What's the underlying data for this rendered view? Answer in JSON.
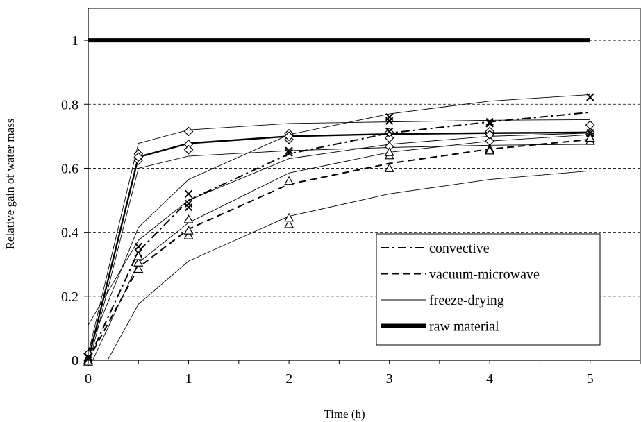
{
  "chart_data": {
    "type": "line",
    "title": "",
    "xlabel": "Time (h)",
    "ylabel": "Relative gain of water mass",
    "xlim": [
      0,
      5.5
    ],
    "ylim": [
      0,
      1.1
    ],
    "x_ticks": [
      "0",
      "1",
      "2",
      "3",
      "4",
      "5"
    ],
    "y_ticks": [
      "0",
      "0.2",
      "0.4",
      "0.6",
      "0.8",
      "1"
    ],
    "grid": "horizontal dashed",
    "legend_position": "bottom-right",
    "legend": [
      {
        "label": "convective",
        "style": "dash-dot"
      },
      {
        "label": "vacuum-microwave",
        "style": "dashed"
      },
      {
        "label": "freeze-drying",
        "style": "thin-solid"
      },
      {
        "label": "raw material",
        "style": "thick-solid"
      }
    ],
    "series": [
      {
        "name": "raw material",
        "style": "thick",
        "x": [
          0,
          5
        ],
        "y": [
          1,
          1
        ]
      },
      {
        "name": "freeze-drying",
        "style": "solid-mid",
        "marker": "diamond",
        "x": [
          0,
          0.5,
          1,
          2,
          3,
          4,
          5
        ],
        "y": [
          0,
          0.635,
          0.678,
          0.7,
          0.707,
          0.71,
          0.712
        ]
      },
      {
        "name": "freeze-drying",
        "style": "thin",
        "x": [
          0,
          0.5,
          1,
          2,
          3,
          4,
          5
        ],
        "y": [
          0.02,
          0.678,
          0.72,
          0.74,
          0.745,
          0.75,
          0.752
        ]
      },
      {
        "name": "freeze-drying",
        "style": "thin",
        "x": [
          0,
          0.5,
          1,
          2,
          3,
          4,
          5
        ],
        "y": [
          -0.02,
          0.6,
          0.638,
          0.655,
          0.665,
          0.672,
          0.675
        ]
      },
      {
        "name": "convective",
        "style": "dash-dot",
        "marker": "x",
        "x": [
          0,
          0.5,
          1,
          2,
          3,
          4,
          5
        ],
        "y": [
          0,
          0.34,
          0.5,
          0.645,
          0.71,
          0.745,
          0.775
        ]
      },
      {
        "name": "convective",
        "style": "thin",
        "x": [
          0,
          0.5,
          1,
          2,
          3,
          4,
          5
        ],
        "y": [
          0.03,
          0.415,
          0.565,
          0.705,
          0.77,
          0.81,
          0.83
        ]
      },
      {
        "name": "convective",
        "style": "thin",
        "x": [
          0,
          0.5,
          1,
          2,
          3,
          4,
          5
        ],
        "y": [
          -0.03,
          0.305,
          0.43,
          0.585,
          0.65,
          0.685,
          0.705
        ]
      },
      {
        "name": "vacuum-microwave",
        "style": "dashed",
        "marker": "triangle",
        "x": [
          0,
          0.5,
          1,
          2,
          3,
          4,
          5
        ],
        "y": [
          0,
          0.29,
          0.41,
          0.55,
          0.615,
          0.66,
          0.69
        ]
      },
      {
        "name": "vacuum-microwave",
        "style": "thin",
        "x": [
          0,
          0.5,
          1,
          2,
          3,
          4,
          5
        ],
        "y": [
          0.11,
          0.375,
          0.5,
          0.63,
          0.675,
          0.7,
          0.71
        ]
      },
      {
        "name": "vacuum-microwave",
        "style": "thin",
        "x": [
          0,
          0.5,
          1,
          2,
          3,
          4,
          5
        ],
        "y": [
          -0.11,
          0.175,
          0.31,
          0.45,
          0.52,
          0.565,
          0.592
        ]
      }
    ],
    "markers": [
      {
        "shape": "diamond",
        "points": [
          [
            0,
            0
          ],
          [
            0,
            0.02
          ],
          [
            0,
            -0.005
          ],
          [
            0.5,
            0.625
          ],
          [
            0.5,
            0.645
          ],
          [
            0.5,
            0.635
          ],
          [
            1,
            0.715
          ],
          [
            1,
            0.675
          ],
          [
            1,
            0.658
          ],
          [
            2,
            0.708
          ],
          [
            2,
            0.69
          ],
          [
            2,
            0.7
          ],
          [
            3,
            0.695
          ],
          [
            3,
            0.668
          ],
          [
            3,
            0.712
          ],
          [
            4,
            0.715
          ],
          [
            4,
            0.685
          ],
          [
            4,
            0.705
          ],
          [
            5,
            0.735
          ],
          [
            5,
            0.712
          ],
          [
            5,
            0.705
          ]
        ]
      },
      {
        "shape": "x",
        "points": [
          [
            0,
            0
          ],
          [
            0,
            0.01
          ],
          [
            0.5,
            0.355
          ],
          [
            0.5,
            0.335
          ],
          [
            1,
            0.52
          ],
          [
            1,
            0.49
          ],
          [
            1,
            0.478
          ],
          [
            2,
            0.655
          ],
          [
            2,
            0.648
          ],
          [
            3,
            0.76
          ],
          [
            3,
            0.748
          ],
          [
            3,
            0.715
          ],
          [
            4,
            0.745
          ],
          [
            4,
            0.74
          ],
          [
            5,
            0.822
          ],
          [
            5,
            0.71
          ],
          [
            5,
            0.7
          ]
        ]
      },
      {
        "shape": "triangle",
        "points": [
          [
            0,
            0
          ],
          [
            0,
            -0.005
          ],
          [
            0.5,
            0.285
          ],
          [
            0.5,
            0.305
          ],
          [
            0.5,
            0.325
          ],
          [
            1,
            0.39
          ],
          [
            1,
            0.405
          ],
          [
            1,
            0.44
          ],
          [
            2,
            0.425
          ],
          [
            2,
            0.445
          ],
          [
            2,
            0.56
          ],
          [
            3,
            0.6
          ],
          [
            3,
            0.64
          ],
          [
            3,
            0.65
          ],
          [
            4,
            0.66
          ],
          [
            4,
            0.655
          ],
          [
            5,
            0.685
          ],
          [
            5,
            0.695
          ]
        ]
      }
    ]
  }
}
